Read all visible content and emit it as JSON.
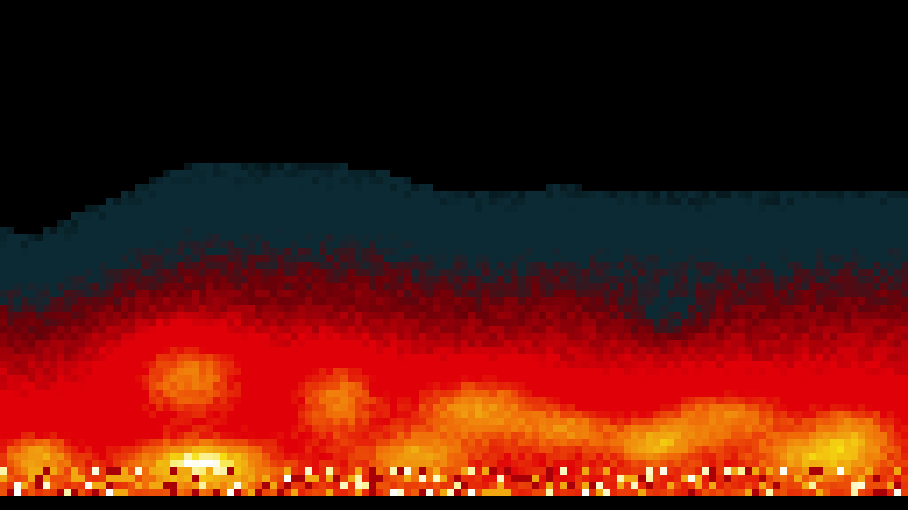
{
  "scene": {
    "description_kind": "pixel-art fire effect",
    "palette": {
      "background": "#000000",
      "smoke": "#0b2a33",
      "deep_red": "#6a0008",
      "red": "#e00008",
      "orange": "#f06a08",
      "amber": "#f0a010",
      "yellow": "#f5e010",
      "white": "#ffffff"
    }
  }
}
